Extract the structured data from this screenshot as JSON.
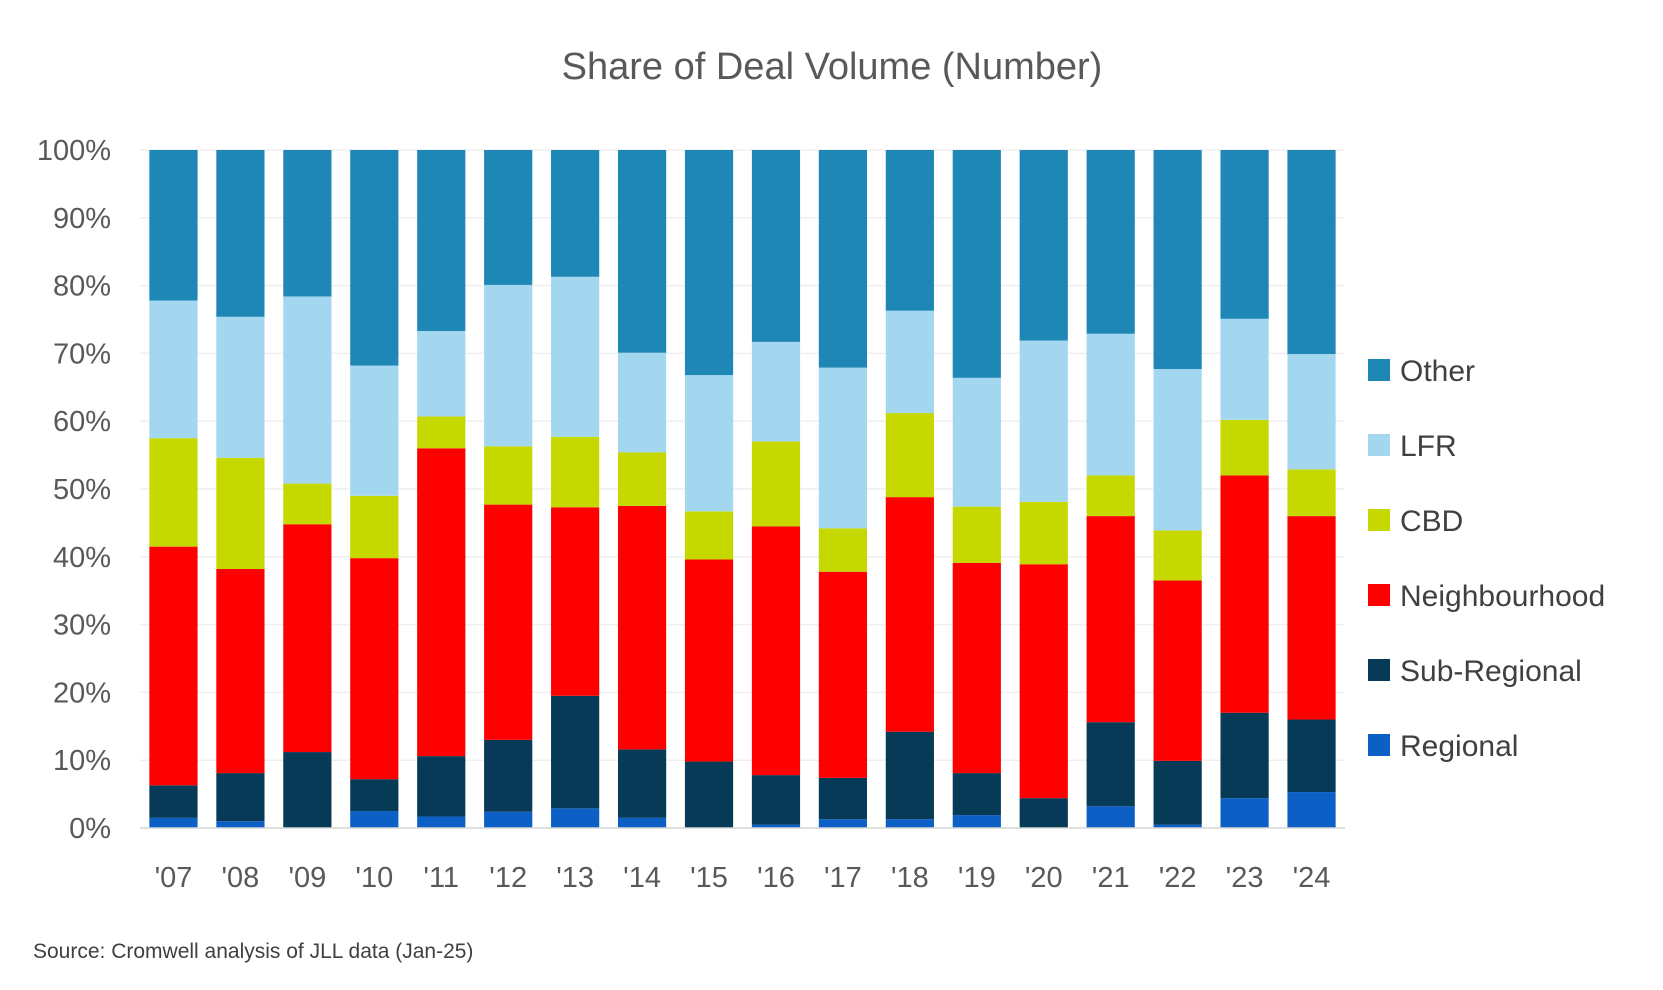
{
  "chart_data": {
    "type": "bar",
    "stacked": true,
    "title": "Share of Deal Volume (Number)",
    "xlabel": "",
    "ylabel": "",
    "ylim": [
      0,
      100
    ],
    "y_ticks": [
      "0%",
      "10%",
      "20%",
      "30%",
      "40%",
      "50%",
      "60%",
      "70%",
      "80%",
      "90%",
      "100%"
    ],
    "grid": true,
    "legend_position": "right",
    "categories": [
      "'07",
      "'08",
      "'09",
      "'10",
      "'11",
      "'12",
      "'13",
      "'14",
      "'15",
      "'16",
      "'17",
      "'18",
      "'19",
      "'20",
      "'21",
      "'22",
      "'23",
      "'24"
    ],
    "series": [
      {
        "name": "Regional",
        "color": "#0b5fc5",
        "values": [
          1.5,
          1.0,
          0.0,
          2.5,
          1.7,
          2.4,
          2.9,
          1.5,
          0.0,
          0.5,
          1.3,
          1.3,
          1.9,
          0.0,
          3.2,
          0.5,
          4.4,
          5.3
        ]
      },
      {
        "name": "Sub-Regional",
        "color": "#073a56",
        "values": [
          4.8,
          7.1,
          11.2,
          4.7,
          8.9,
          10.6,
          16.6,
          10.1,
          9.8,
          7.3,
          6.1,
          12.9,
          6.2,
          4.4,
          12.4,
          9.4,
          12.6,
          10.7
        ]
      },
      {
        "name": "Neighbourhood",
        "color": "#ff0000",
        "values": [
          35.2,
          30.1,
          33.6,
          32.6,
          45.4,
          34.7,
          27.8,
          35.9,
          29.8,
          36.7,
          30.4,
          34.6,
          31.0,
          34.5,
          30.4,
          26.6,
          35.0,
          30.0
        ]
      },
      {
        "name": "CBD",
        "color": "#c5d800",
        "values": [
          16.0,
          16.4,
          6.0,
          9.2,
          4.7,
          8.6,
          10.4,
          7.9,
          7.1,
          12.5,
          6.4,
          12.4,
          8.3,
          9.2,
          6.0,
          7.4,
          8.2,
          6.9
        ]
      },
      {
        "name": "LFR",
        "color": "#a3d7f0",
        "values": [
          20.3,
          20.8,
          27.6,
          19.2,
          12.6,
          23.8,
          23.6,
          14.7,
          20.1,
          14.7,
          23.7,
          15.1,
          19.0,
          23.8,
          20.9,
          23.8,
          14.9,
          17.0
        ]
      },
      {
        "name": "Other",
        "color": "#1f87b6",
        "values": [
          22.2,
          24.6,
          21.6,
          31.8,
          26.7,
          19.9,
          18.7,
          29.9,
          33.2,
          28.3,
          32.1,
          23.7,
          33.6,
          28.1,
          27.1,
          32.3,
          24.9,
          30.1
        ]
      }
    ],
    "source": "Source: Cromwell analysis of JLL data (Jan-25)"
  }
}
